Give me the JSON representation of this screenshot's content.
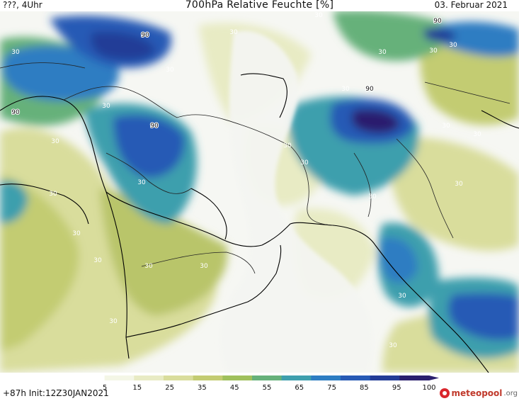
{
  "header": {
    "left": "???, 4Uhr",
    "title": "700hPa Relative Feuchte [%]",
    "date": "03. Februar 2021"
  },
  "footer": {
    "forecast": "+87h Init:12Z30JAN2021",
    "logo_text": "meteopool",
    "logo_tld": ".org"
  },
  "colorbar": {
    "ticks": [
      "5",
      "15",
      "25",
      "35",
      "45",
      "55",
      "65",
      "75",
      "85",
      "95",
      "100"
    ],
    "colors": [
      "#ffffff",
      "#f4f6e6",
      "#e8ebc4",
      "#d9dd9c",
      "#c3cc72",
      "#9fc05c",
      "#66b17a",
      "#3e9fad",
      "#2d7dc2",
      "#275ab5",
      "#233c97",
      "#2a1f6e"
    ]
  },
  "map_labels": [
    "90",
    "30",
    "90",
    "30",
    "90",
    "30",
    "90",
    "30",
    "30",
    "90",
    "30",
    "30",
    "30",
    "30",
    "30",
    "30",
    "30",
    "30",
    "30",
    "30",
    "30",
    "30",
    "30",
    "30",
    "30",
    "30",
    "30",
    "30",
    "30",
    "30"
  ],
  "legend_colors": {
    "dry": "#f4f5f2",
    "low": "#e8ebc4",
    "mid": "#c3cc72",
    "high": "#3e9fad",
    "very_high": "#275ab5",
    "saturated": "#233c97",
    "coast": "#000000"
  }
}
